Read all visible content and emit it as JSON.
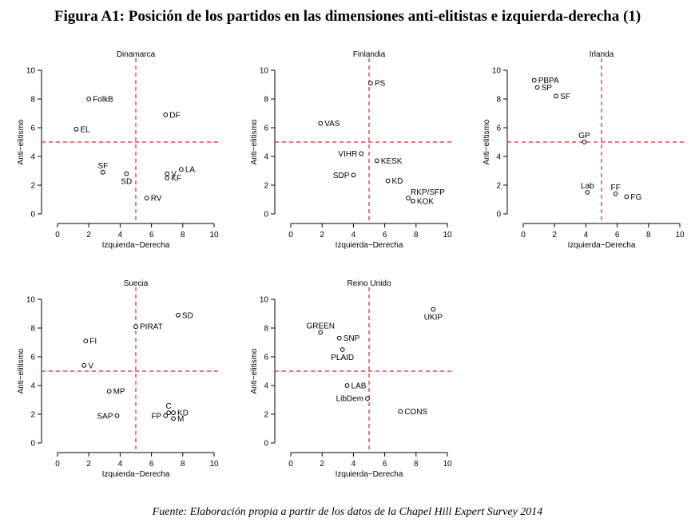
{
  "figure": {
    "title": "Figura A1: Posición de los partidos en las dimensiones anti-elitistas e izquierda-derecha (1)",
    "source": "Fuente: Elaboración propia a partir de los datos de la Chapel Hill Expert Survey 2014"
  },
  "colors": {
    "reference_line": "#e02020",
    "axis": "#000000",
    "point_edge": "#000000"
  },
  "chart_data": [
    {
      "type": "scatter",
      "title": "Dinamarca",
      "xlabel": "Izquierda−Derecha",
      "ylabel": "Anti−elitismo",
      "xlim": [
        0,
        10
      ],
      "ylim": [
        0,
        10
      ],
      "xticks": [
        0,
        2,
        4,
        6,
        8,
        10
      ],
      "yticks": [
        0,
        2,
        4,
        6,
        8,
        10
      ],
      "reference_lines": {
        "x": 5,
        "y": 5
      },
      "points": [
        {
          "label": "FolkB",
          "x": 2.0,
          "y": 8.0,
          "label_pos": "right"
        },
        {
          "label": "EL",
          "x": 1.2,
          "y": 5.9,
          "label_pos": "right"
        },
        {
          "label": "DF",
          "x": 6.9,
          "y": 6.9,
          "label_pos": "right"
        },
        {
          "label": "SF",
          "x": 2.9,
          "y": 2.9,
          "label_pos": "above"
        },
        {
          "label": "SD",
          "x": 4.4,
          "y": 2.8,
          "label_pos": "below"
        },
        {
          "label": "V",
          "x": 7.0,
          "y": 2.8,
          "label_pos": "right"
        },
        {
          "label": "LA",
          "x": 7.9,
          "y": 3.1,
          "label_pos": "right"
        },
        {
          "label": "KF",
          "x": 7.0,
          "y": 2.5,
          "label_pos": "right"
        },
        {
          "label": "RV",
          "x": 5.7,
          "y": 1.1,
          "label_pos": "right"
        }
      ]
    },
    {
      "type": "scatter",
      "title": "Finlandia",
      "xlabel": "Izquierda−Derecha",
      "ylabel": "Anti−elitismo",
      "xlim": [
        0,
        10
      ],
      "ylim": [
        0,
        10
      ],
      "xticks": [
        0,
        2,
        4,
        6,
        8,
        10
      ],
      "yticks": [
        0,
        2,
        4,
        6,
        8,
        10
      ],
      "reference_lines": {
        "x": 5,
        "y": 5
      },
      "points": [
        {
          "label": "PS",
          "x": 5.1,
          "y": 9.1,
          "label_pos": "right"
        },
        {
          "label": "VAS",
          "x": 1.9,
          "y": 6.3,
          "label_pos": "right"
        },
        {
          "label": "VIHR",
          "x": 4.5,
          "y": 4.2,
          "label_pos": "left"
        },
        {
          "label": "KESK",
          "x": 5.5,
          "y": 3.7,
          "label_pos": "right"
        },
        {
          "label": "SDP",
          "x": 4.0,
          "y": 2.7,
          "label_pos": "left"
        },
        {
          "label": "KD",
          "x": 6.2,
          "y": 2.3,
          "label_pos": "right"
        },
        {
          "label": "RKP/SFP",
          "x": 7.5,
          "y": 1.1,
          "label_pos": "above-right"
        },
        {
          "label": "KOK",
          "x": 7.8,
          "y": 0.9,
          "label_pos": "right"
        }
      ]
    },
    {
      "type": "scatter",
      "title": "Irlanda",
      "xlabel": "Izquierda−Derecha",
      "ylabel": "Anti−elitismo",
      "xlim": [
        0,
        10
      ],
      "ylim": [
        0,
        10
      ],
      "xticks": [
        0,
        2,
        4,
        6,
        8,
        10
      ],
      "yticks": [
        0,
        2,
        4,
        6,
        8,
        10
      ],
      "reference_lines": {
        "x": 5,
        "y": 5
      },
      "points": [
        {
          "label": "PBPA",
          "x": 0.7,
          "y": 9.3,
          "label_pos": "right"
        },
        {
          "label": "SP",
          "x": 0.9,
          "y": 8.8,
          "label_pos": "right"
        },
        {
          "label": "SF",
          "x": 2.1,
          "y": 8.2,
          "label_pos": "right"
        },
        {
          "label": "GP",
          "x": 3.9,
          "y": 5.0,
          "label_pos": "above"
        },
        {
          "label": "Lab",
          "x": 4.1,
          "y": 1.5,
          "label_pos": "above"
        },
        {
          "label": "FF",
          "x": 5.9,
          "y": 1.4,
          "label_pos": "above"
        },
        {
          "label": "FG",
          "x": 6.6,
          "y": 1.2,
          "label_pos": "right"
        }
      ]
    },
    {
      "type": "scatter",
      "title": "Suecia",
      "xlabel": "Izquierda−Derecha",
      "ylabel": "Anti−elitismo",
      "xlim": [
        0,
        10
      ],
      "ylim": [
        0,
        10
      ],
      "xticks": [
        0,
        2,
        4,
        6,
        8,
        10
      ],
      "yticks": [
        0,
        2,
        4,
        6,
        8,
        10
      ],
      "reference_lines": {
        "x": 5,
        "y": 5
      },
      "points": [
        {
          "label": "SD",
          "x": 7.7,
          "y": 8.9,
          "label_pos": "right"
        },
        {
          "label": "PIRAT",
          "x": 5.0,
          "y": 8.1,
          "label_pos": "right"
        },
        {
          "label": "FI",
          "x": 1.8,
          "y": 7.1,
          "label_pos": "right"
        },
        {
          "label": "V",
          "x": 1.7,
          "y": 5.4,
          "label_pos": "right"
        },
        {
          "label": "MP",
          "x": 3.3,
          "y": 3.6,
          "label_pos": "right"
        },
        {
          "label": "SAP",
          "x": 3.8,
          "y": 1.9,
          "label_pos": "left"
        },
        {
          "label": "C",
          "x": 7.1,
          "y": 2.1,
          "label_pos": "above"
        },
        {
          "label": "KD",
          "x": 7.4,
          "y": 2.1,
          "label_pos": "right"
        },
        {
          "label": "FP",
          "x": 6.9,
          "y": 1.9,
          "label_pos": "left"
        },
        {
          "label": "M",
          "x": 7.4,
          "y": 1.7,
          "label_pos": "right"
        }
      ]
    },
    {
      "type": "scatter",
      "title": "Reino Unido",
      "xlabel": "Izquierda−Derecha",
      "ylabel": "Anti−elitismo",
      "xlim": [
        0,
        10
      ],
      "ylim": [
        0,
        10
      ],
      "xticks": [
        0,
        2,
        4,
        6,
        8,
        10
      ],
      "yticks": [
        0,
        2,
        4,
        6,
        8,
        10
      ],
      "reference_lines": {
        "x": 5,
        "y": 5
      },
      "points": [
        {
          "label": "UKIP",
          "x": 9.1,
          "y": 9.3,
          "label_pos": "below"
        },
        {
          "label": "GREEN",
          "x": 1.9,
          "y": 7.7,
          "label_pos": "above"
        },
        {
          "label": "SNP",
          "x": 3.1,
          "y": 7.3,
          "label_pos": "right"
        },
        {
          "label": "PLAID",
          "x": 3.3,
          "y": 6.5,
          "label_pos": "below"
        },
        {
          "label": "LAB",
          "x": 3.6,
          "y": 4.0,
          "label_pos": "right"
        },
        {
          "label": "LibDem",
          "x": 4.9,
          "y": 3.1,
          "label_pos": "left"
        },
        {
          "label": "CONS",
          "x": 7.0,
          "y": 2.2,
          "label_pos": "right"
        }
      ]
    }
  ]
}
